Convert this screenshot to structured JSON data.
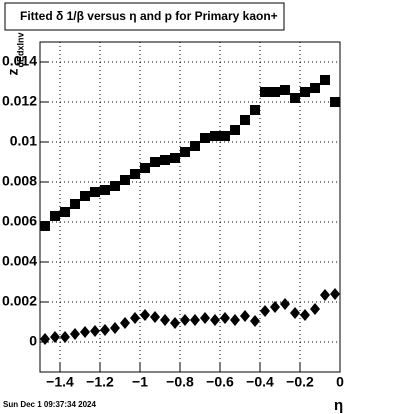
{
  "chart_data": {
    "type": "scatter",
    "title": "Fitted δ 1/β versus η and p for Primary kaon+",
    "x_label": "η",
    "y_label": "z",
    "y_label_sub": "dEdxInv",
    "footer": "Sun Dec  1 09:37:34 2024",
    "x": [
      -1.475,
      -1.425,
      -1.375,
      -1.325,
      -1.275,
      -1.225,
      -1.175,
      -1.125,
      -1.075,
      -1.025,
      -0.975,
      -0.925,
      -0.875,
      -0.825,
      -0.775,
      -0.725,
      -0.675,
      -0.625,
      -0.575,
      -0.525,
      -0.475,
      -0.425,
      -0.375,
      -0.325,
      -0.275,
      -0.225,
      -0.175,
      -0.125,
      -0.075,
      -0.025
    ],
    "series": [
      {
        "marker": "square",
        "color": "#000000",
        "values": [
          0.0058,
          0.0063,
          0.0065,
          0.0069,
          0.0073,
          0.0075,
          0.0076,
          0.0078,
          0.0081,
          0.0084,
          0.0087,
          0.009,
          0.0091,
          0.0092,
          0.0095,
          0.0098,
          0.0102,
          0.0103,
          0.0103,
          0.0106,
          0.0111,
          0.0116,
          0.0125,
          0.0125,
          0.0126,
          0.0122,
          0.0125,
          0.0127,
          0.0131,
          0.012
        ]
      },
      {
        "marker": "diamond",
        "color": "#000000",
        "values": [
          0.00015,
          0.00025,
          0.00025,
          0.0004,
          0.0005,
          0.00055,
          0.0006,
          0.0007,
          0.00095,
          0.0012,
          0.00135,
          0.00125,
          0.0011,
          0.00095,
          0.0011,
          0.0011,
          0.0012,
          0.0011,
          0.0012,
          0.0011,
          0.0013,
          0.00105,
          0.00155,
          0.00175,
          0.0019,
          0.00145,
          0.00135,
          0.00165,
          0.00235,
          0.0024
        ]
      }
    ],
    "xlim": [
      -1.5,
      0
    ],
    "ylim": [
      -0.0015,
      0.015
    ],
    "xticks": [
      {
        "value": -1.4,
        "label": "−1.4"
      },
      {
        "value": -1.2,
        "label": "−1.2"
      },
      {
        "value": -1,
        "label": "−1"
      },
      {
        "value": -0.8,
        "label": "−0.8"
      },
      {
        "value": -0.6,
        "label": "−0.6"
      },
      {
        "value": -0.4,
        "label": "−0.4"
      },
      {
        "value": -0.2,
        "label": "−0.2"
      },
      0
    ],
    "yticks": [
      0,
      0.002,
      0.004,
      0.006,
      0.008,
      0.01,
      0.012,
      0.014
    ],
    "grid": true
  }
}
